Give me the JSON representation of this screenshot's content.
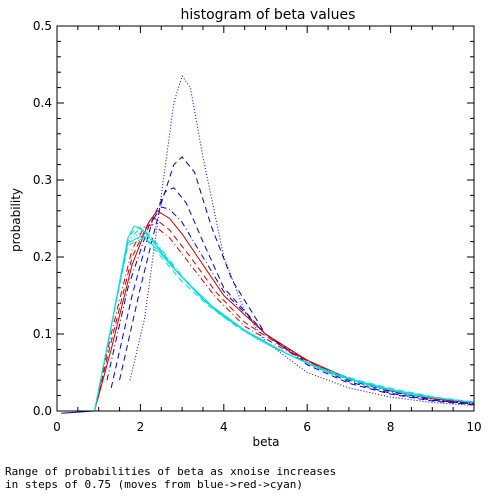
{
  "chart_data": {
    "type": "line",
    "title": "histogram of beta values",
    "xlabel": "beta",
    "ylabel": "probability",
    "xlim": [
      0,
      10
    ],
    "ylim": [
      0,
      0.5
    ],
    "xticks": [
      0,
      2,
      4,
      6,
      8,
      10
    ],
    "xtick_labels": [
      "0",
      "2",
      "4",
      "6",
      "8",
      "10"
    ],
    "yticks": [
      0,
      0.1,
      0.2,
      0.3,
      0.4,
      0.5
    ],
    "ytick_labels": [
      "0.0",
      "0.1",
      "0.2",
      "0.3",
      "0.4",
      "0.5"
    ],
    "grid": false,
    "legend": "none",
    "series": [
      {
        "color": "#0000cc",
        "dash": "dotted",
        "points": [
          [
            1.75,
            0.04
          ],
          [
            2.1,
            0.12
          ],
          [
            2.5,
            0.28
          ],
          [
            2.8,
            0.4
          ],
          [
            3.0,
            0.435
          ],
          [
            3.2,
            0.42
          ],
          [
            3.5,
            0.33
          ],
          [
            4.0,
            0.2
          ],
          [
            4.5,
            0.13
          ],
          [
            5.0,
            0.09
          ],
          [
            6.0,
            0.05
          ],
          [
            7.0,
            0.03
          ],
          [
            8.0,
            0.018
          ],
          [
            9.0,
            0.011
          ],
          [
            10.0,
            0.007
          ]
        ]
      },
      {
        "color": "#0000cc",
        "dash": "dashed",
        "points": [
          [
            1.5,
            0.04
          ],
          [
            2.0,
            0.16
          ],
          [
            2.5,
            0.27
          ],
          [
            2.8,
            0.32
          ],
          [
            3.0,
            0.33
          ],
          [
            3.3,
            0.31
          ],
          [
            3.7,
            0.24
          ],
          [
            4.2,
            0.17
          ],
          [
            5.0,
            0.1
          ],
          [
            6.0,
            0.06
          ],
          [
            7.0,
            0.036
          ],
          [
            8.0,
            0.022
          ],
          [
            9.0,
            0.013
          ],
          [
            10.0,
            0.008
          ]
        ]
      },
      {
        "color": "#0000cc",
        "dash": "dashed",
        "points": [
          [
            1.3,
            0.03
          ],
          [
            1.8,
            0.15
          ],
          [
            2.3,
            0.25
          ],
          [
            2.6,
            0.285
          ],
          [
            2.8,
            0.29
          ],
          [
            3.1,
            0.27
          ],
          [
            3.5,
            0.22
          ],
          [
            4.0,
            0.16
          ],
          [
            5.0,
            0.1
          ],
          [
            6.0,
            0.062
          ],
          [
            7.0,
            0.038
          ],
          [
            8.0,
            0.023
          ],
          [
            9.0,
            0.014
          ],
          [
            10.0,
            0.009
          ]
        ]
      },
      {
        "color": "#0000cc",
        "dash": "dashdot",
        "points": [
          [
            1.2,
            0.04
          ],
          [
            1.7,
            0.16
          ],
          [
            2.2,
            0.24
          ],
          [
            2.5,
            0.265
          ],
          [
            2.7,
            0.262
          ],
          [
            3.0,
            0.245
          ],
          [
            3.5,
            0.2
          ],
          [
            4.0,
            0.155
          ],
          [
            5.0,
            0.1
          ],
          [
            6.0,
            0.065
          ],
          [
            7.0,
            0.04
          ],
          [
            8.0,
            0.025
          ],
          [
            9.0,
            0.015
          ],
          [
            10.0,
            0.009
          ]
        ]
      },
      {
        "color": "#cc0000",
        "dash": "solid",
        "points": [
          [
            0.9,
            0.0
          ],
          [
            1.3,
            0.08
          ],
          [
            1.8,
            0.19
          ],
          [
            2.2,
            0.245
          ],
          [
            2.4,
            0.26
          ],
          [
            2.7,
            0.25
          ],
          [
            3.0,
            0.23
          ],
          [
            3.5,
            0.19
          ],
          [
            4.0,
            0.15
          ],
          [
            5.0,
            0.1
          ],
          [
            6.0,
            0.066
          ],
          [
            7.0,
            0.042
          ],
          [
            8.0,
            0.026
          ],
          [
            9.0,
            0.016
          ],
          [
            10.0,
            0.01
          ]
        ]
      },
      {
        "color": "#cc0000",
        "dash": "dashed",
        "points": [
          [
            0.9,
            0.0
          ],
          [
            1.3,
            0.09
          ],
          [
            1.8,
            0.2
          ],
          [
            2.2,
            0.245
          ],
          [
            2.35,
            0.25
          ],
          [
            2.7,
            0.235
          ],
          [
            3.2,
            0.2
          ],
          [
            3.8,
            0.155
          ],
          [
            4.5,
            0.115
          ],
          [
            5.5,
            0.08
          ],
          [
            6.5,
            0.052
          ],
          [
            7.5,
            0.034
          ],
          [
            8.5,
            0.021
          ],
          [
            10.0,
            0.011
          ]
        ]
      },
      {
        "color": "#cc0000",
        "dash": "dashdot",
        "points": [
          [
            0.9,
            0.0
          ],
          [
            1.3,
            0.1
          ],
          [
            1.8,
            0.21
          ],
          [
            2.1,
            0.24
          ],
          [
            2.3,
            0.242
          ],
          [
            2.7,
            0.225
          ],
          [
            3.2,
            0.19
          ],
          [
            3.8,
            0.148
          ],
          [
            4.5,
            0.11
          ],
          [
            5.5,
            0.078
          ],
          [
            6.5,
            0.052
          ],
          [
            7.5,
            0.034
          ],
          [
            8.5,
            0.021
          ],
          [
            10.0,
            0.011
          ]
        ]
      },
      {
        "color": "#00dddd",
        "dash": "solid",
        "points": [
          [
            0.9,
            0.0
          ],
          [
            1.3,
            0.11
          ],
          [
            1.7,
            0.225
          ],
          [
            1.85,
            0.24
          ],
          [
            2.0,
            0.238
          ],
          [
            2.3,
            0.22
          ],
          [
            2.8,
            0.185
          ],
          [
            3.5,
            0.145
          ],
          [
            4.5,
            0.105
          ],
          [
            5.5,
            0.075
          ],
          [
            6.5,
            0.05
          ],
          [
            7.5,
            0.033
          ],
          [
            8.5,
            0.021
          ],
          [
            10.0,
            0.011
          ]
        ]
      },
      {
        "color": "#00dddd",
        "dash": "dashed",
        "points": [
          [
            0.9,
            0.0
          ],
          [
            1.3,
            0.11
          ],
          [
            1.7,
            0.225
          ],
          [
            1.9,
            0.238
          ],
          [
            2.1,
            0.235
          ],
          [
            2.4,
            0.215
          ],
          [
            2.9,
            0.18
          ],
          [
            3.6,
            0.14
          ],
          [
            4.6,
            0.1
          ],
          [
            5.6,
            0.072
          ],
          [
            6.6,
            0.048
          ],
          [
            7.6,
            0.032
          ],
          [
            8.6,
            0.02
          ],
          [
            10.0,
            0.011
          ]
        ]
      },
      {
        "color": "#00dddd",
        "dash": "dashdot",
        "points": [
          [
            0.9,
            0.0
          ],
          [
            1.3,
            0.11
          ],
          [
            1.7,
            0.222
          ],
          [
            1.95,
            0.235
          ],
          [
            2.2,
            0.23
          ],
          [
            2.5,
            0.21
          ],
          [
            3.0,
            0.175
          ],
          [
            3.7,
            0.135
          ],
          [
            4.7,
            0.097
          ],
          [
            5.7,
            0.07
          ],
          [
            6.7,
            0.047
          ],
          [
            7.7,
            0.031
          ],
          [
            8.7,
            0.02
          ],
          [
            10.0,
            0.011
          ]
        ]
      },
      {
        "color": "#00dddd",
        "dash": "dotted",
        "points": [
          [
            0.9,
            0.0
          ],
          [
            1.3,
            0.11
          ],
          [
            1.7,
            0.22
          ],
          [
            2.0,
            0.232
          ],
          [
            2.3,
            0.222
          ],
          [
            2.6,
            0.2
          ],
          [
            3.1,
            0.168
          ],
          [
            3.8,
            0.13
          ],
          [
            4.8,
            0.093
          ],
          [
            5.8,
            0.067
          ],
          [
            6.8,
            0.045
          ],
          [
            7.8,
            0.03
          ],
          [
            8.8,
            0.019
          ],
          [
            10.0,
            0.011
          ]
        ]
      },
      {
        "color": "#00dddd",
        "dash": "solid",
        "points": [
          [
            0.9,
            0.0
          ],
          [
            1.3,
            0.11
          ],
          [
            1.7,
            0.218
          ],
          [
            2.05,
            0.228
          ],
          [
            2.4,
            0.21
          ],
          [
            2.8,
            0.185
          ],
          [
            3.3,
            0.158
          ],
          [
            4.0,
            0.122
          ],
          [
            5.0,
            0.088
          ],
          [
            6.0,
            0.062
          ],
          [
            7.0,
            0.042
          ],
          [
            8.0,
            0.028
          ],
          [
            9.0,
            0.018
          ],
          [
            10.0,
            0.011
          ]
        ]
      },
      {
        "color": "#00dddd",
        "dash": "dashed",
        "points": [
          [
            0.9,
            0.0
          ],
          [
            1.3,
            0.11
          ],
          [
            1.7,
            0.215
          ],
          [
            2.1,
            0.225
          ],
          [
            2.5,
            0.2
          ],
          [
            3.0,
            0.168
          ],
          [
            3.6,
            0.138
          ],
          [
            4.3,
            0.11
          ],
          [
            5.2,
            0.082
          ],
          [
            6.2,
            0.058
          ],
          [
            7.2,
            0.04
          ],
          [
            8.2,
            0.027
          ],
          [
            9.2,
            0.017
          ],
          [
            10.0,
            0.012
          ]
        ]
      }
    ],
    "baseline": {
      "color": "#0000cc",
      "points": [
        [
          0.1,
          -0.003
        ],
        [
          0.9,
          0.0
        ]
      ]
    }
  },
  "caption": {
    "line1": "Range of probabilities of beta as xnoise increases",
    "line2": "in steps of 0.75 (moves from blue->red->cyan)"
  }
}
